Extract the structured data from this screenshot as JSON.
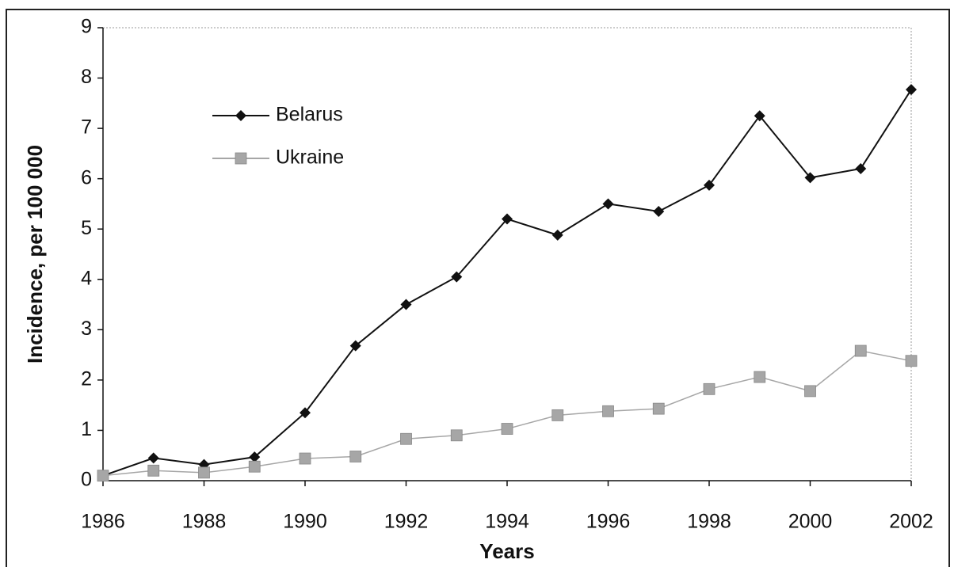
{
  "chart_data": {
    "type": "line",
    "x_label": "Years",
    "y_label": "Incidence, per 100 000",
    "x": [
      1986,
      1987,
      1988,
      1989,
      1990,
      1991,
      1992,
      1993,
      1994,
      1995,
      1996,
      1997,
      1998,
      1999,
      2000,
      2001,
      2002
    ],
    "series": [
      {
        "name": "Belarus",
        "color": "#111111",
        "marker": "diamond",
        "values": [
          0.1,
          0.45,
          0.32,
          0.47,
          1.35,
          2.68,
          3.5,
          4.05,
          5.2,
          4.88,
          5.5,
          5.35,
          5.87,
          7.25,
          6.02,
          6.2,
          7.77
        ]
      },
      {
        "name": "Ukraine",
        "color": "#a6a6a6",
        "marker": "square",
        "values": [
          0.1,
          0.2,
          0.16,
          0.28,
          0.44,
          0.48,
          0.83,
          0.9,
          1.03,
          1.3,
          1.38,
          1.43,
          1.82,
          2.06,
          1.78,
          2.58,
          2.38
        ]
      }
    ],
    "xlim": [
      1986,
      2002
    ],
    "xticks": [
      1986,
      1988,
      1990,
      1992,
      1994,
      1996,
      1998,
      2000,
      2002
    ],
    "ylim": [
      0,
      9
    ],
    "yticks": [
      0,
      1,
      2,
      3,
      4,
      5,
      6,
      7,
      8,
      9
    ],
    "grid": false,
    "legend": "upper left"
  }
}
